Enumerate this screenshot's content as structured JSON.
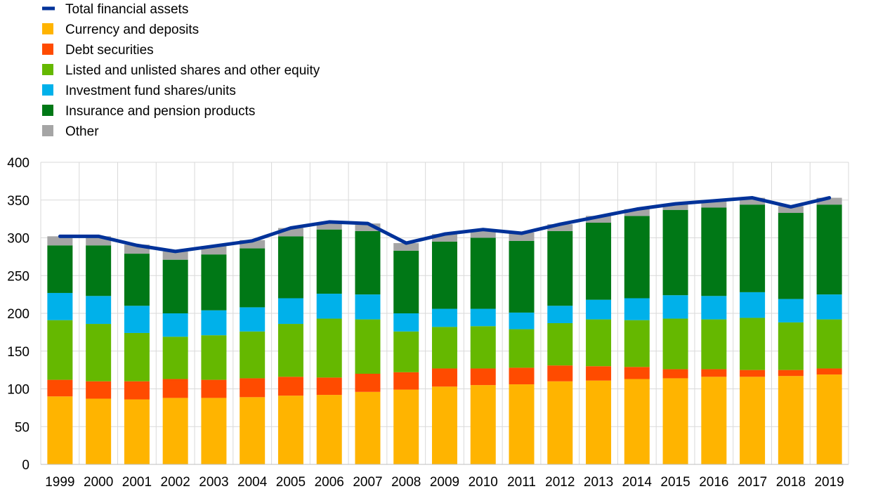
{
  "chart_data": {
    "type": "bar",
    "stacked": true,
    "title": "",
    "xlabel": "",
    "ylabel": "",
    "ylim": [
      0,
      400
    ],
    "yticks": [
      0,
      50,
      100,
      150,
      200,
      250,
      300,
      350,
      400
    ],
    "grid": true,
    "legend_position": "top-left",
    "categories": [
      "1999",
      "2000",
      "2001",
      "2002",
      "2003",
      "2004",
      "2005",
      "2006",
      "2007",
      "2008",
      "2009",
      "2010",
      "2011",
      "2012",
      "2013",
      "2014",
      "2015",
      "2016",
      "2017",
      "2018",
      "2019"
    ],
    "series": [
      {
        "name": "Currency and deposits",
        "color": "#FFB400",
        "values": [
          90,
          87,
          86,
          88,
          88,
          89,
          91,
          92,
          96,
          99,
          103,
          105,
          106,
          110,
          111,
          113,
          114,
          116,
          116,
          117,
          119
        ]
      },
      {
        "name": "Debt securities",
        "color": "#FF4B00",
        "values": [
          22,
          23,
          24,
          25,
          24,
          25,
          25,
          23,
          24,
          23,
          24,
          22,
          22,
          21,
          19,
          16,
          12,
          10,
          9,
          8,
          8
        ]
      },
      {
        "name": "Listed and unlisted shares and other equity",
        "color": "#65B800",
        "values": [
          79,
          76,
          64,
          56,
          59,
          62,
          70,
          78,
          72,
          54,
          55,
          56,
          51,
          56,
          62,
          62,
          67,
          66,
          69,
          63,
          65
        ]
      },
      {
        "name": "Investment fund shares/units",
        "color": "#00B1EA",
        "values": [
          36,
          37,
          36,
          31,
          33,
          32,
          34,
          33,
          33,
          24,
          24,
          23,
          22,
          23,
          26,
          29,
          31,
          31,
          34,
          31,
          33
        ]
      },
      {
        "name": "Insurance and pension products",
        "color": "#007816",
        "values": [
          63,
          67,
          69,
          71,
          74,
          78,
          82,
          85,
          84,
          83,
          89,
          94,
          95,
          99,
          102,
          109,
          113,
          117,
          116,
          114,
          119
        ]
      },
      {
        "name": "Other",
        "color": "#A5A5A5",
        "values": [
          12,
          12,
          12,
          11,
          11,
          11,
          11,
          9,
          10,
          10,
          10,
          9,
          11,
          9,
          9,
          9,
          8,
          9,
          9,
          9,
          9
        ]
      }
    ],
    "line_series": {
      "name": "Total financial assets",
      "color": "#003299",
      "values": [
        302,
        302,
        290,
        282,
        289,
        296,
        313,
        321,
        319,
        293,
        305,
        311,
        306,
        318,
        328,
        338,
        345,
        349,
        353,
        341,
        353
      ]
    }
  }
}
